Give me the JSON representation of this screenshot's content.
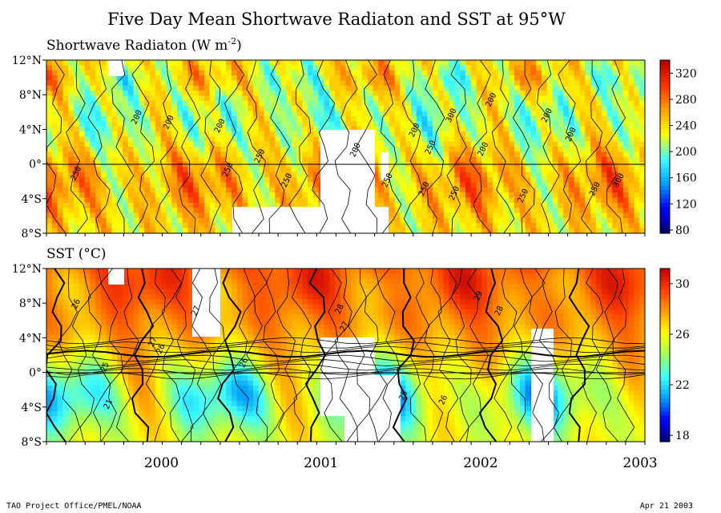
{
  "title": "Five Day Mean Shortwave Radiaton and SST at 95°W",
  "footer": {
    "left": "TAO Project Office/PMEL/NOAA",
    "right": "Apr 21 2003"
  },
  "chart_data": [
    {
      "type": "heatmap",
      "title_text": "Shortwave Radiaton (W m",
      "title_sup": "-2",
      "title_tail": ")",
      "x_range": [
        1999.4,
        2003.15
      ],
      "y_range": [
        -8,
        12
      ],
      "y_ticks": [
        {
          "value": 12,
          "label": "12°N"
        },
        {
          "value": 8,
          "label": "8°N"
        },
        {
          "value": 4,
          "label": "4°N"
        },
        {
          "value": 0,
          "label": "0°"
        },
        {
          "value": -4,
          "label": "4°S"
        },
        {
          "value": -8,
          "label": "8°S"
        }
      ],
      "colorbar": {
        "min": 75,
        "max": 340,
        "ticks": [
          "320",
          "280",
          "240",
          "200",
          "160",
          "120",
          "80"
        ],
        "tick_values": [
          320,
          280,
          240,
          200,
          160,
          120,
          80
        ],
        "stops": [
          "#000066",
          "#0000ff",
          "#00a0ff",
          "#40ffff",
          "#ffff00",
          "#ffa000",
          "#ff3000",
          "#b00000"
        ]
      },
      "contour_labels": [
        {
          "text": "200",
          "x": 1999.98,
          "y": 5.3
        },
        {
          "text": "200",
          "x": 2000.18,
          "y": 4.7
        },
        {
          "text": "250",
          "x": 1999.6,
          "y": -1.2
        },
        {
          "text": "200",
          "x": 2000.5,
          "y": 4.3
        },
        {
          "text": "250",
          "x": 2000.55,
          "y": -0.8
        },
        {
          "text": "250",
          "x": 2000.75,
          "y": 0.8
        },
        {
          "text": "250",
          "x": 2000.92,
          "y": -2.0
        },
        {
          "text": "200",
          "x": 2001.35,
          "y": 1.5
        },
        {
          "text": "200",
          "x": 2001.72,
          "y": 3.8
        },
        {
          "text": "250",
          "x": 2001.55,
          "y": -2.0
        },
        {
          "text": "250",
          "x": 2001.78,
          "y": -3.0
        },
        {
          "text": "250",
          "x": 2001.97,
          "y": -3.5
        },
        {
          "text": "250",
          "x": 2001.82,
          "y": 1.8
        },
        {
          "text": "300",
          "x": 2001.95,
          "y": 5.5
        },
        {
          "text": "200",
          "x": 2002.2,
          "y": 7.3
        },
        {
          "text": "200",
          "x": 2002.55,
          "y": 5.5
        },
        {
          "text": "200",
          "x": 2002.7,
          "y": 3.3
        },
        {
          "text": "200",
          "x": 2002.15,
          "y": 1.6
        },
        {
          "text": "250",
          "x": 2002.4,
          "y": -3.8
        },
        {
          "text": "250",
          "x": 2002.85,
          "y": -3.0
        },
        {
          "text": "300",
          "x": 2003.0,
          "y": -2.0
        }
      ]
    },
    {
      "type": "heatmap",
      "title_text": "SST (°C)",
      "x_range": [
        1999.4,
        2003.15
      ],
      "y_range": [
        -8,
        12
      ],
      "x_ticks": [
        {
          "value": 2000.0,
          "label": "2000"
        },
        {
          "value": 2001.0,
          "label": "2001"
        },
        {
          "value": 2002.0,
          "label": "2002"
        },
        {
          "value": 2003.0,
          "label": "2003"
        }
      ],
      "y_ticks": [
        {
          "value": 12,
          "label": "12°N"
        },
        {
          "value": 8,
          "label": "8°N"
        },
        {
          "value": 4,
          "label": "4°N"
        },
        {
          "value": 0,
          "label": "0°"
        },
        {
          "value": -4,
          "label": "4°S"
        },
        {
          "value": -8,
          "label": "8°S"
        }
      ],
      "colorbar": {
        "min": 17.5,
        "max": 31.2,
        "ticks": [
          "30",
          "26",
          "22",
          "18"
        ],
        "tick_values": [
          30,
          26,
          22,
          18
        ],
        "stops": [
          "#000070",
          "#0000ff",
          "#00a0ff",
          "#40ffff",
          "#a0ff60",
          "#ffff00",
          "#ffa000",
          "#ff4000",
          "#c00000"
        ]
      },
      "contour_labels": [
        {
          "text": "26",
          "x": 1999.6,
          "y": 7.8
        },
        {
          "text": "27",
          "x": 2000.35,
          "y": 7.0
        },
        {
          "text": "27",
          "x": 2000.08,
          "y": 3.4
        },
        {
          "text": "26",
          "x": 2000.13,
          "y": 2.6
        },
        {
          "text": "25",
          "x": 1999.78,
          "y": 0.5
        },
        {
          "text": "21",
          "x": 1999.8,
          "y": -3.8
        },
        {
          "text": "26",
          "x": 2000.65,
          "y": 1.0
        },
        {
          "text": "28",
          "x": 2001.25,
          "y": 7.2
        },
        {
          "text": "27",
          "x": 2001.28,
          "y": 5.2
        },
        {
          "text": "25",
          "x": 2001.65,
          "y": -2.8
        },
        {
          "text": "26",
          "x": 2001.9,
          "y": -3.3
        },
        {
          "text": "29",
          "x": 2002.12,
          "y": 8.7
        },
        {
          "text": "28",
          "x": 2002.25,
          "y": 7.0
        }
      ]
    }
  ]
}
